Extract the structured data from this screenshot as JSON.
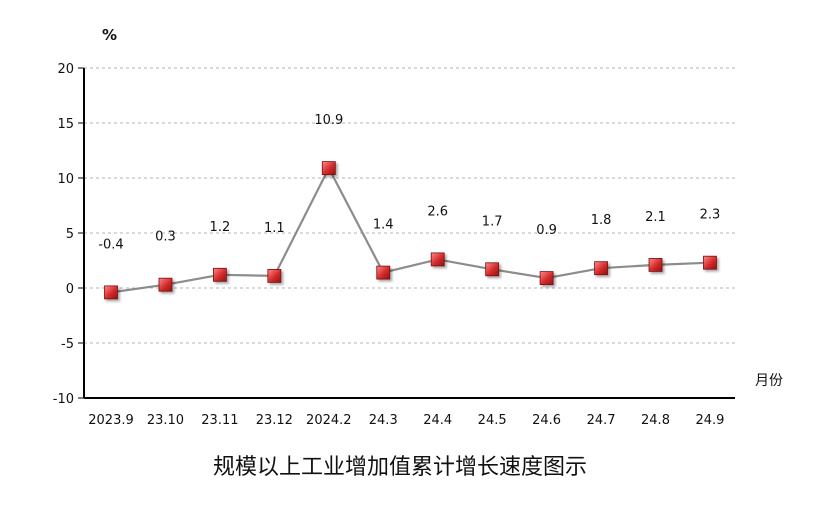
{
  "chart_data": {
    "type": "line",
    "title": "规模以上工业增加值累计增长速度图示",
    "ylabel": "%",
    "xlabel": "月份",
    "ylim": [
      -10,
      20
    ],
    "yticks": [
      20,
      15,
      10,
      5,
      0,
      -5,
      -10
    ],
    "grid": true,
    "categories": [
      "2023.9",
      "23.10",
      "23.11",
      "23.12",
      "2024.2",
      "24.3",
      "24.4",
      "24.5",
      "24.6",
      "24.7",
      "24.8",
      "24.9"
    ],
    "series": [
      {
        "name": "规模以上工业增加值累计增长速度",
        "values": [
          -0.4,
          0.3,
          1.2,
          1.1,
          10.9,
          1.4,
          2.6,
          1.7,
          0.9,
          1.8,
          2.1,
          2.3
        ],
        "labels": [
          "-0.4",
          "0.3",
          "1.2",
          "1.1",
          "10.9",
          "1.4",
          "2.6",
          "1.7",
          "0.9",
          "1.8",
          "2.1",
          "2.3"
        ]
      }
    ],
    "colors": {
      "line": "#8c8c8c",
      "marker": "#d42a2a",
      "marker_edge": "#7a1010",
      "grid": "#b3b3b3",
      "axis": "#000000"
    }
  }
}
